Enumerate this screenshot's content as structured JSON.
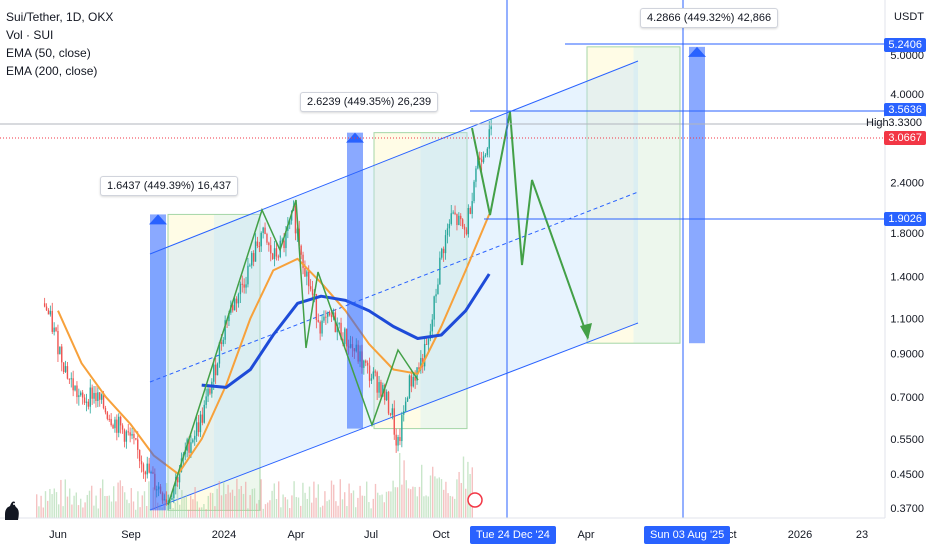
{
  "legend": {
    "symbol": "Sui/Tether, 1D, OKX",
    "volume": "Vol · SUI",
    "ema1": "EMA (50, close)",
    "ema2": "EMA (200, close)"
  },
  "currency": "USDT",
  "annotations": [
    {
      "text": "1.6437 (449.39%) 16,437"
    },
    {
      "text": "2.6239 (449.35%) 26,239"
    },
    {
      "text": "4.2866 (449.32%) 42,866"
    }
  ],
  "price_tags": [
    {
      "text": "5.2406",
      "color": "#2962ff"
    },
    {
      "text": "3.5636",
      "color": "#2962ff"
    },
    {
      "text": "3.3300",
      "color": "#ffffff"
    },
    {
      "text": "3.0667",
      "color": "#f23645"
    },
    {
      "text": "1.9026",
      "color": "#2962ff"
    }
  ],
  "high_label": "High",
  "date_tags": [
    {
      "text": "Tue 24 Dec '24"
    },
    {
      "text": "Sun 03 Aug '25"
    }
  ],
  "chart_data": {
    "type": "line",
    "title": "Sui/Tether, 1D, OKX",
    "yscale": "log",
    "ylim": [
      0.35,
      5.6
    ],
    "y_ticks": [
      "5.0000",
      "4.0000",
      "3.3300",
      "2.4000",
      "1.8000",
      "1.4000",
      "1.1000",
      "0.9000",
      "0.7000",
      "0.5500",
      "0.4500",
      "0.3700"
    ],
    "x_ticks": [
      "Jun",
      "Sep",
      "2024",
      "Apr",
      "Jul",
      "Oct",
      "Apr",
      "Oct",
      "2026",
      "23"
    ],
    "series": [
      {
        "name": "Sui/Tether",
        "color": "#26a69a",
        "x": [
          "2023-05-15",
          "2023-06-01",
          "2023-06-15",
          "2023-07-01",
          "2023-07-15",
          "2023-08-01",
          "2023-08-15",
          "2023-09-01",
          "2023-09-15",
          "2023-10-01",
          "2023-10-19",
          "2023-11-01",
          "2023-11-15",
          "2023-12-01",
          "2023-12-15",
          "2024-01-01",
          "2024-01-15",
          "2024-02-01",
          "2024-02-15",
          "2024-03-01",
          "2024-03-15",
          "2024-03-27",
          "2024-04-15",
          "2024-05-01",
          "2024-05-15",
          "2024-06-01",
          "2024-06-15",
          "2024-07-01",
          "2024-07-15",
          "2024-08-01",
          "2024-08-05",
          "2024-08-20",
          "2024-09-01",
          "2024-09-15",
          "2024-10-01",
          "2024-10-15",
          "2024-11-01",
          "2024-11-15",
          "2024-12-01",
          "2024-12-05"
        ],
        "values": [
          1.2,
          0.95,
          0.78,
          0.68,
          0.72,
          0.65,
          0.6,
          0.55,
          0.49,
          0.43,
          0.39,
          0.45,
          0.54,
          0.62,
          0.78,
          1.1,
          1.25,
          1.5,
          1.8,
          1.55,
          1.7,
          2.0,
          1.35,
          1.05,
          1.1,
          0.98,
          0.9,
          0.8,
          0.75,
          0.62,
          0.5,
          0.75,
          0.82,
          0.95,
          1.6,
          2.0,
          1.8,
          2.7,
          3.1,
          3.3
        ]
      },
      {
        "name": "EMA (50, close)",
        "color": "#f7a13b",
        "x": [
          "2023-06-01",
          "2023-07-01",
          "2023-08-01",
          "2023-09-01",
          "2023-10-01",
          "2023-11-01",
          "2023-12-01",
          "2024-01-01",
          "2024-02-01",
          "2024-03-01",
          "2024-04-01",
          "2024-05-01",
          "2024-06-01",
          "2024-07-01",
          "2024-08-01",
          "2024-09-01",
          "2024-10-01",
          "2024-11-01",
          "2024-12-01"
        ],
        "values": [
          1.15,
          0.85,
          0.7,
          0.6,
          0.5,
          0.45,
          0.55,
          0.75,
          1.1,
          1.45,
          1.55,
          1.35,
          1.15,
          0.95,
          0.82,
          0.8,
          1.05,
          1.45,
          2.0
        ]
      },
      {
        "name": "EMA (200, close)",
        "color": "#1e4bd8",
        "x": [
          "2023-12-01",
          "2024-01-01",
          "2024-02-01",
          "2024-03-01",
          "2024-04-01",
          "2024-05-01",
          "2024-06-01",
          "2024-07-01",
          "2024-08-01",
          "2024-09-01",
          "2024-10-01",
          "2024-11-01",
          "2024-12-01"
        ],
        "values": [
          0.75,
          0.74,
          0.82,
          1.0,
          1.2,
          1.25,
          1.22,
          1.15,
          1.05,
          0.98,
          1.0,
          1.15,
          1.42
        ]
      }
    ],
    "projections": [
      {
        "label": "1.6437 (449.39%) 16,437",
        "from": 0.365,
        "to": 2.0
      },
      {
        "label": "2.6239 (449.35%) 26,239",
        "from": 0.584,
        "to": 3.2
      },
      {
        "label": "4.2866 (449.32%) 42,866",
        "from": 0.954,
        "to": 5.24
      }
    ],
    "horizontal_levels": [
      5.2406,
      3.5636,
      3.33,
      3.0667,
      1.9026
    ]
  }
}
